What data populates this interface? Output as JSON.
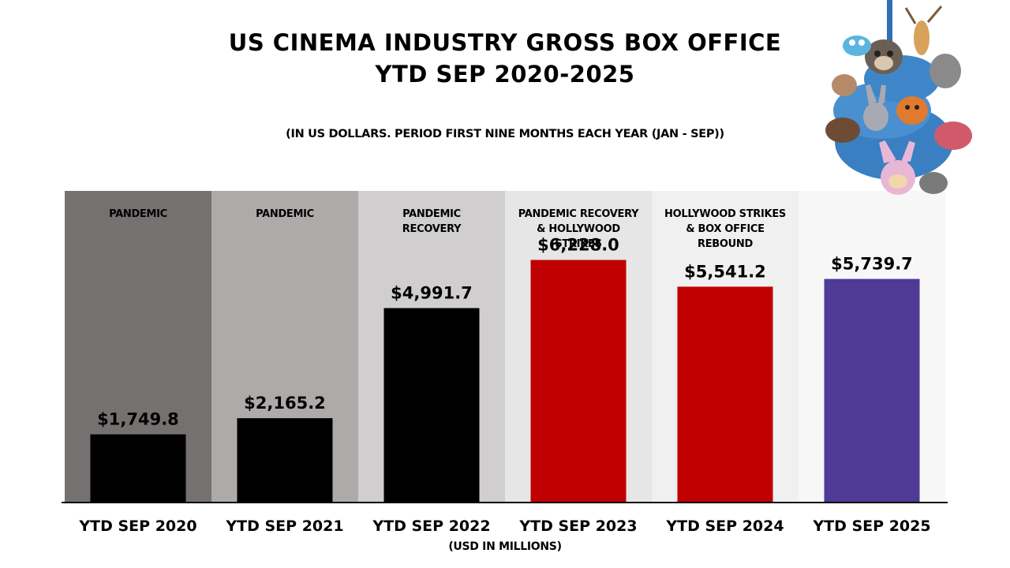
{
  "title_line1": "US CINEMA INDUSTRY GROSS BOX OFFICE",
  "title_line2": "YTD SEP 2020-2025",
  "subtitle": "(IN US DOLLARS. PERIOD FIRST NINE MONTHS EACH YEAR (JAN - SEP))",
  "units_note": "(USD IN MILLIONS)",
  "chart_data": {
    "type": "bar",
    "title": "US CINEMA INDUSTRY GROSS BOX OFFICE YTD SEP 2020-2025",
    "categories": [
      "YTD SEP 2020",
      "YTD SEP 2021",
      "YTD SEP 2022",
      "YTD SEP 2023",
      "YTD SEP 2024",
      "YTD SEP 2025"
    ],
    "values": [
      1749.8,
      2165.2,
      4991.7,
      6228.0,
      5541.2,
      5739.7
    ],
    "value_labels": [
      "$1,749.8",
      "$2,165.2",
      "$4,991.7",
      "$6,228.0",
      "$5,541.2",
      "$5,739.7"
    ],
    "period_labels": [
      [
        "PANDEMIC"
      ],
      [
        "PANDEMIC"
      ],
      [
        "PANDEMIC",
        "RECOVERY"
      ],
      [
        "PANDEMIC RECOVERY",
        "& HOLLYWOOD",
        "STRIKES"
      ],
      [
        "HOLLYWOOD STRIKES",
        "& BOX OFFICE",
        "REBOUND"
      ],
      []
    ],
    "bar_colors": [
      "#000000",
      "#000000",
      "#000000",
      "#c00000",
      "#c00000",
      "#4f3a96"
    ],
    "band_colors": [
      "#767171",
      "#aeaaaa",
      "#d0cece",
      "#e7e6e6",
      "#f0f0f0",
      "#f7f7f7"
    ],
    "ylim": [
      0,
      8000
    ],
    "xlabel": "(USD IN MILLIONS)",
    "ylabel": "",
    "grid": false
  }
}
